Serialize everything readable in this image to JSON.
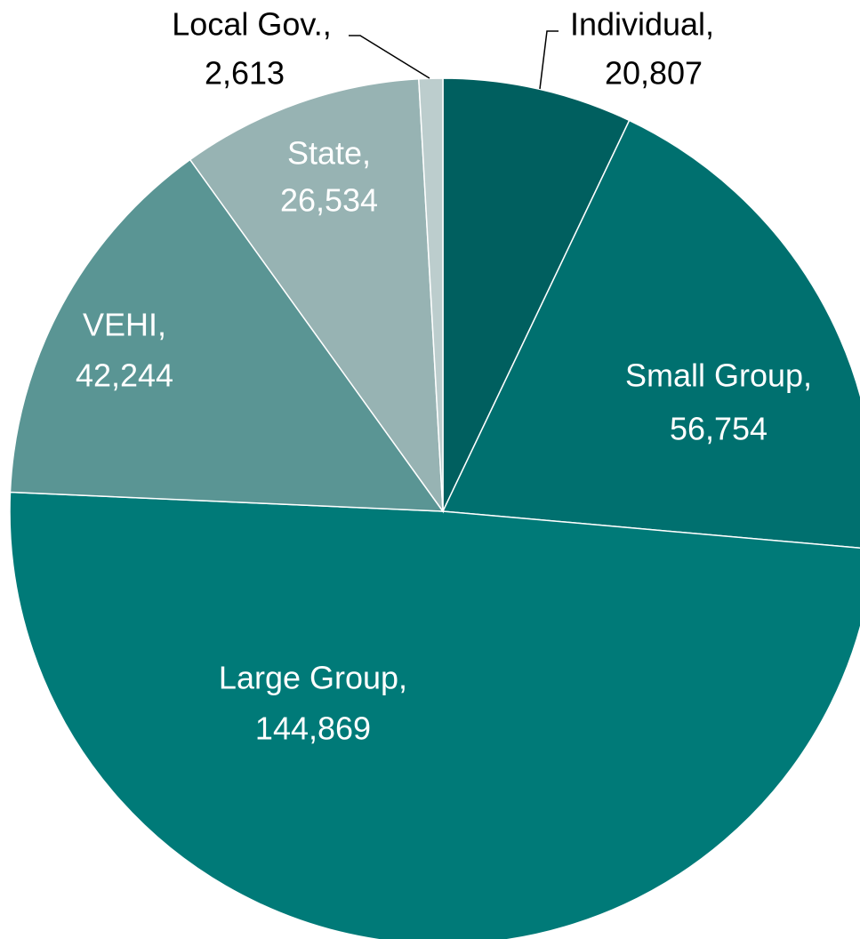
{
  "chart_data": {
    "type": "pie",
    "categories": [
      "Individual,",
      "Small Group,",
      "Large Group,",
      "VEHI,",
      "State,",
      "Local Gov.,"
    ],
    "values": [
      20807,
      56754,
      144869,
      42244,
      26534,
      2613
    ],
    "value_labels": [
      "20,807",
      "56,754",
      "144,869",
      "42,244",
      "26,534",
      "2,613"
    ],
    "colors": [
      "#005f5f",
      "#00706f",
      "#007a78",
      "#5a9594",
      "#97b3b3",
      "#bccdcd"
    ]
  }
}
